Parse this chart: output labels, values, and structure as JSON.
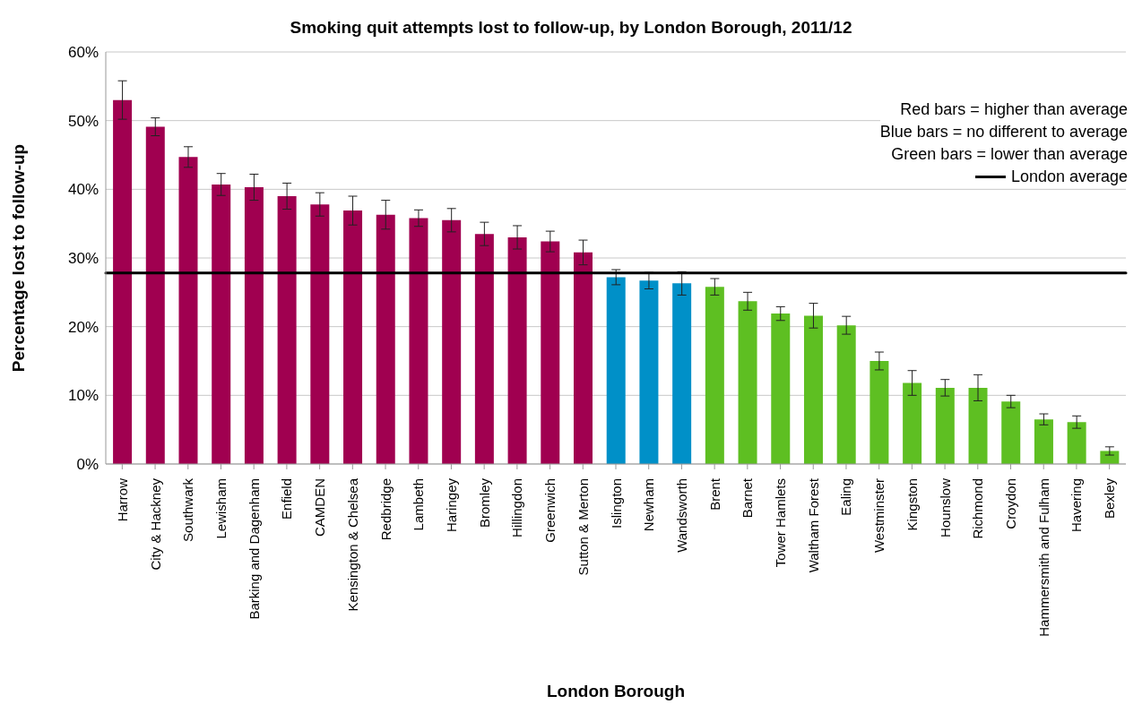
{
  "chart_data": {
    "type": "bar",
    "title": "Smoking quit attempts lost to follow-up, by London Borough, 2011/12",
    "xlabel": "London Borough",
    "ylabel": "Percentage lost to follow-up",
    "categories": [
      "Harrow",
      "City & Hackney",
      "Southwark",
      "Lewisham",
      "Barking and Dagenham",
      "Enfield",
      "CAMDEN",
      "Kensington & Chelsea",
      "Redbridge",
      "Lambeth",
      "Haringey",
      "Bromley",
      "Hillingdon",
      "Greenwich",
      "Sutton & Merton",
      "Islington",
      "Newham",
      "Wandsworth",
      "Brent",
      "Barnet",
      "Tower Hamlets",
      "Waltham Forest",
      "Ealing",
      "Westminster",
      "Kingston",
      "Hounslow",
      "Richmond",
      "Croydon",
      "Hammersmith and Fulham",
      "Havering",
      "Bexley"
    ],
    "values": [
      53.0,
      49.1,
      44.7,
      40.7,
      40.3,
      39.0,
      37.8,
      36.9,
      36.3,
      35.8,
      35.5,
      33.5,
      33.0,
      32.4,
      30.8,
      27.2,
      26.7,
      26.3,
      25.8,
      23.7,
      21.9,
      21.6,
      20.2,
      15.0,
      11.8,
      11.1,
      11.1,
      9.1,
      6.5,
      6.1,
      1.9
    ],
    "errors": [
      2.8,
      1.3,
      1.5,
      1.6,
      1.9,
      1.9,
      1.7,
      2.1,
      2.1,
      1.2,
      1.7,
      1.7,
      1.7,
      1.5,
      1.8,
      1.1,
      1.2,
      1.7,
      1.2,
      1.3,
      1.0,
      1.8,
      1.3,
      1.3,
      1.8,
      1.2,
      1.9,
      0.9,
      0.8,
      0.9,
      0.6
    ],
    "colors": [
      "#a00050",
      "#a00050",
      "#a00050",
      "#a00050",
      "#a00050",
      "#a00050",
      "#a00050",
      "#a00050",
      "#a00050",
      "#a00050",
      "#a00050",
      "#a00050",
      "#a00050",
      "#a00050",
      "#a00050",
      "#0090c8",
      "#0090c8",
      "#0090c8",
      "#5ebf22",
      "#5ebf22",
      "#5ebf22",
      "#5ebf22",
      "#5ebf22",
      "#5ebf22",
      "#5ebf22",
      "#5ebf22",
      "#5ebf22",
      "#5ebf22",
      "#5ebf22",
      "#5ebf22",
      "#5ebf22"
    ],
    "ylim": [
      0,
      60
    ],
    "yticks": [
      {
        "value": 0,
        "label": "0%"
      },
      {
        "value": 10,
        "label": "10%"
      },
      {
        "value": 20,
        "label": "20%"
      },
      {
        "value": 30,
        "label": "30%"
      },
      {
        "value": 40,
        "label": "40%"
      },
      {
        "value": 50,
        "label": "50%"
      },
      {
        "value": 60,
        "label": "60%"
      }
    ],
    "grid": "y",
    "ref_lines": [
      {
        "axis": "y",
        "value": 27.8,
        "label": "London average",
        "color": "#000000",
        "line_style": "solid"
      }
    ],
    "annotations": [
      "Red bars = higher than average",
      "Blue bars = no different to average",
      "Green bars = lower than average"
    ]
  }
}
